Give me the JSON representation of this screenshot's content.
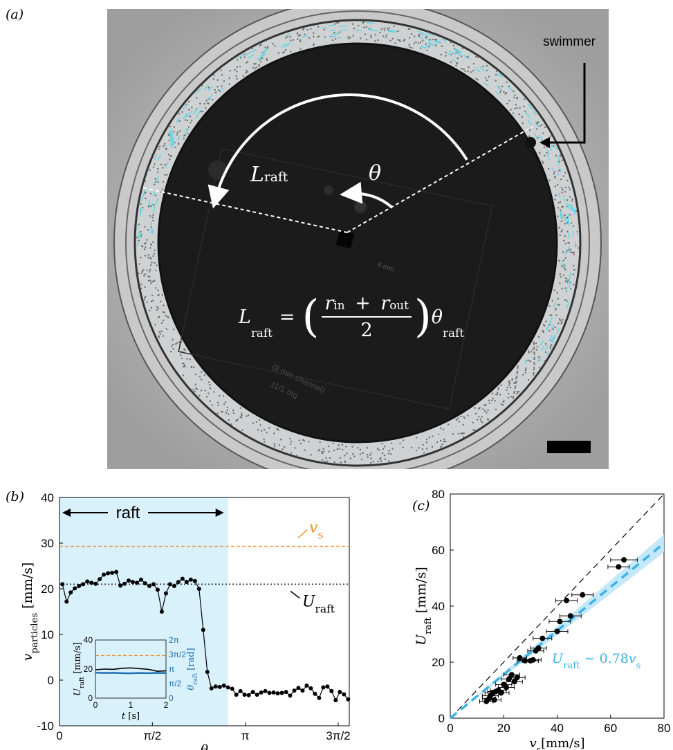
{
  "panel_labels": {
    "a": "(a)",
    "b": "(b)",
    "c": "(c)"
  },
  "photo": {
    "swimmer_label": "swimmer",
    "l_raft_label": "L",
    "l_raft_sub": "raft",
    "theta_label": "θ",
    "equation": {
      "lhs": "L",
      "lhs_sub": "raft",
      "eq": "=",
      "num": "r",
      "num_sub1": "in",
      "plus": "+",
      "num2": "r",
      "num_sub2": "out",
      "den": "2",
      "theta": "θ",
      "theta_sub": "raft"
    },
    "handwriting": [
      "6 mm",
      "(8 mm channel)",
      "11/1 mg"
    ]
  },
  "colors": {
    "raft_shade": "#d8f1fb",
    "vs_line": "#f28e2b",
    "theta_series": "#1f6fb2",
    "fit": "#3cb1e6",
    "fit_band": "#bfe6f7"
  },
  "chart_data": [
    {
      "type": "line",
      "panel": "b",
      "xlabel": "θ",
      "ylabel_main": "v",
      "ylabel_sub": "particles",
      "ylabel_unit": "[mm/s]",
      "ylim": [
        -10,
        40
      ],
      "xlim": [
        0,
        4.9
      ],
      "yticks": [
        -10,
        0,
        10,
        20,
        30,
        40
      ],
      "xticks": [
        {
          "v": 0,
          "label": "0"
        },
        {
          "v": 1.5708,
          "label": "π/2"
        },
        {
          "v": 3.1416,
          "label": "π"
        },
        {
          "v": 4.7124,
          "label": "3π/2"
        }
      ],
      "raft_region": [
        0,
        2.85
      ],
      "raft_label": "raft",
      "vs_value": 29.3,
      "vs_label": "v",
      "vs_sub": "s",
      "u_raft_value": 21,
      "u_raft_label": "U",
      "u_raft_sub": "raft",
      "series": [
        {
          "x": [
            0.05,
            0.12,
            0.19,
            0.26,
            0.33,
            0.4,
            0.47,
            0.54,
            0.61,
            0.68,
            0.75,
            0.82,
            0.89,
            0.96,
            1.03,
            1.1,
            1.17,
            1.24,
            1.31,
            1.38,
            1.45,
            1.52,
            1.59,
            1.66,
            1.73,
            1.8,
            1.87,
            1.94,
            2.01,
            2.08,
            2.15,
            2.22,
            2.29,
            2.36,
            2.43,
            2.5,
            2.57,
            2.64,
            2.71,
            2.78,
            2.85,
            2.92,
            2.99,
            3.06,
            3.13,
            3.2,
            3.27,
            3.34,
            3.41,
            3.48,
            3.55,
            3.62,
            3.69,
            3.76,
            3.83,
            3.9,
            3.97,
            4.04,
            4.11,
            4.18,
            4.25,
            4.32,
            4.39,
            4.46,
            4.53,
            4.6,
            4.67,
            4.74,
            4.81,
            4.88
          ],
          "y": [
            21,
            17.2,
            19.2,
            20.1,
            20.6,
            21.0,
            21.6,
            21.3,
            21.1,
            22.1,
            23.1,
            23.4,
            23.5,
            23.7,
            20.7,
            21.1,
            21.8,
            21.5,
            21.3,
            22.0,
            21.2,
            20.6,
            21.0,
            19.8,
            15.0,
            19.0,
            21.0,
            20.6,
            21.5,
            22.2,
            21.5,
            22.0,
            21.7,
            20.0,
            11.0,
            1.8,
            -1.8,
            -1.4,
            -1.5,
            -1.2,
            -1.6,
            -1.9,
            -3.2,
            -2.4,
            -3.2,
            -3.3,
            -2.6,
            -3.2,
            -2.7,
            -2.4,
            -2.8,
            -2.7,
            -2.9,
            -2.8,
            -2.6,
            -3.4,
            -2.3,
            -1.7,
            -2.3,
            -1.2,
            -1.8,
            -3.0,
            -3.9,
            -1.6,
            -1.4,
            -2.4,
            -4.4,
            -2.6,
            -3.1,
            -4.2
          ]
        }
      ]
    },
    {
      "type": "line",
      "panel": "b-inset",
      "xlabel": "t",
      "xlabel_unit": "[s]",
      "ylabel_left": "U",
      "ylabel_left_sub": "raft",
      "ylabel_left_unit": "[mm/s]",
      "ylabel_right": "θ",
      "ylabel_right_sub": "raft",
      "ylabel_right_unit": "[rad]",
      "xlim": [
        0,
        2
      ],
      "ylim_left": [
        0,
        40
      ],
      "xticks": [
        {
          "v": 0,
          "label": "0"
        },
        {
          "v": 1,
          "label": "1"
        },
        {
          "v": 2,
          "label": "2"
        }
      ],
      "yticks_left": [
        {
          "v": 0,
          "label": "0"
        },
        {
          "v": 20,
          "label": "20"
        },
        {
          "v": 40,
          "label": "40"
        }
      ],
      "yticks_right": [
        {
          "v": 0,
          "label": "0"
        },
        {
          "v": 1.5708,
          "label": "π/2"
        },
        {
          "v": 3.1416,
          "label": "π"
        },
        {
          "v": 4.7124,
          "label": "3π/2"
        },
        {
          "v": 6.2832,
          "label": "2π"
        }
      ],
      "ylim_right": [
        0,
        6.2832
      ],
      "vs_value": 29.3,
      "series": [
        {
          "x": [
            0,
            0.25,
            0.5,
            0.75,
            1.0,
            1.25,
            1.5,
            1.75,
            2.0
          ],
          "y": [
            19.5,
            20.0,
            19.8,
            20.5,
            20.8,
            20.3,
            19.8,
            18.5,
            18.8
          ]
        },
        {
          "x": [
            0,
            0.25,
            0.5,
            0.75,
            1.0,
            1.25,
            1.5,
            1.75,
            2.0
          ],
          "y": [
            2.75,
            2.72,
            2.74,
            2.7,
            2.68,
            2.72,
            2.7,
            2.73,
            2.71
          ]
        }
      ]
    },
    {
      "type": "scatter",
      "panel": "c",
      "xlabel_main": "v",
      "xlabel_sub": "s",
      "xlabel_unit": "[mm/s]",
      "ylabel_main": "U",
      "ylabel_sub": "raft",
      "ylabel_unit": "[mm/s]",
      "xlim": [
        0,
        80
      ],
      "ylim": [
        0,
        80
      ],
      "xticks": [
        0,
        20,
        40,
        60,
        80
      ],
      "yticks": [
        0,
        20,
        40,
        60,
        80
      ],
      "fit_slope": 0.78,
      "fit_label_main": "U",
      "fit_label_sub": "raft",
      "fit_label_rel": "∼ 0.78",
      "fit_label_var": "v",
      "fit_label_var_sub": "s",
      "points": [
        {
          "x": 13.5,
          "y": 6.0,
          "ex": 2.5
        },
        {
          "x": 14.5,
          "y": 7.0,
          "ex": 2.5
        },
        {
          "x": 15.0,
          "y": 8.0,
          "ex": 3
        },
        {
          "x": 16.0,
          "y": 9.0,
          "ex": 3
        },
        {
          "x": 16.5,
          "y": 6.5,
          "ex": 2.5
        },
        {
          "x": 17.0,
          "y": 9.5,
          "ex": 3
        },
        {
          "x": 18.0,
          "y": 10.0,
          "ex": 3
        },
        {
          "x": 19.0,
          "y": 9.0,
          "ex": 3
        },
        {
          "x": 20.0,
          "y": 12.0,
          "ex": 3
        },
        {
          "x": 21.0,
          "y": 11.0,
          "ex": 3
        },
        {
          "x": 22.0,
          "y": 14.0,
          "ex": 3
        },
        {
          "x": 23.0,
          "y": 15.5,
          "ex": 3
        },
        {
          "x": 24.0,
          "y": 13.0,
          "ex": 3
        },
        {
          "x": 25.0,
          "y": 14.5,
          "ex": 3
        },
        {
          "x": 26.0,
          "y": 21.5,
          "ex": 2.5
        },
        {
          "x": 28.0,
          "y": 20.5,
          "ex": 3
        },
        {
          "x": 30.0,
          "y": 20.5,
          "ex": 3
        },
        {
          "x": 31.0,
          "y": 20.8,
          "ex": 3
        },
        {
          "x": 32.0,
          "y": 24.0,
          "ex": 3
        },
        {
          "x": 33.0,
          "y": 25.0,
          "ex": 3
        },
        {
          "x": 34.5,
          "y": 28.5,
          "ex": 3.5
        },
        {
          "x": 40.0,
          "y": 31.0,
          "ex": 4
        },
        {
          "x": 41.0,
          "y": 34.5,
          "ex": 4
        },
        {
          "x": 43.5,
          "y": 42.0,
          "ex": 4
        },
        {
          "x": 45.0,
          "y": 36.5,
          "ex": 4
        },
        {
          "x": 49.5,
          "y": 44.0,
          "ex": 4
        },
        {
          "x": 63.0,
          "y": 54.0,
          "ex": 4
        },
        {
          "x": 65.0,
          "y": 56.5,
          "ex": 5
        }
      ]
    }
  ]
}
